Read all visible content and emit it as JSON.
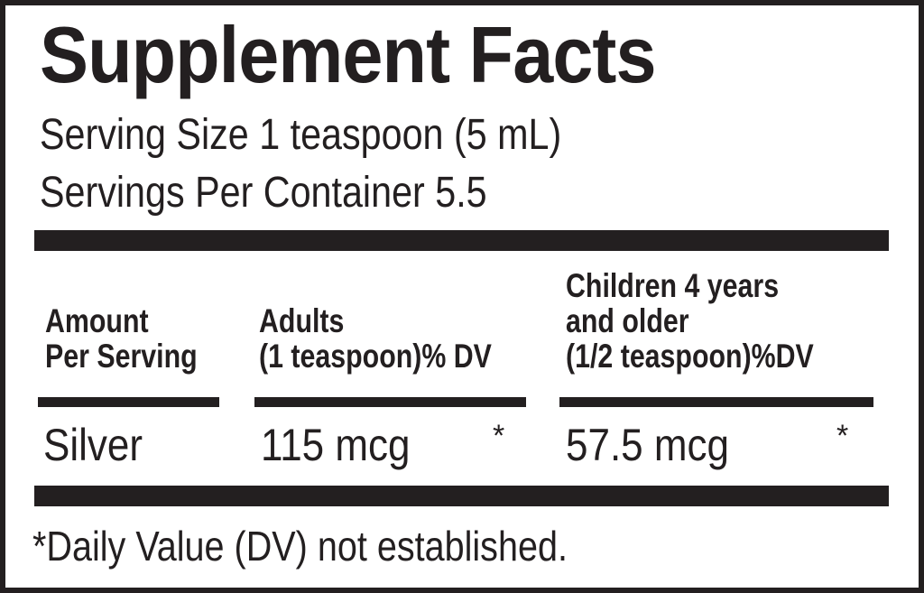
{
  "header": {
    "title": "Supplement Facts",
    "serving_size": "Serving Size 1 teaspoon (5 mL)",
    "servings_per_container": "Servings Per Container 5.5"
  },
  "table": {
    "columns": [
      {
        "lines": [
          "Amount",
          "Per Serving"
        ]
      },
      {
        "lines": [
          "Adults",
          "(1 teaspoon)% DV"
        ]
      },
      {
        "lines": [
          "Children 4 years",
          "and older",
          "(1/2 teaspoon)%DV"
        ]
      }
    ],
    "rows": [
      [
        "Silver",
        "115 mcg",
        "*",
        "57.5 mcg",
        "*"
      ]
    ]
  },
  "footnote": "*Daily Value (DV) not established."
}
